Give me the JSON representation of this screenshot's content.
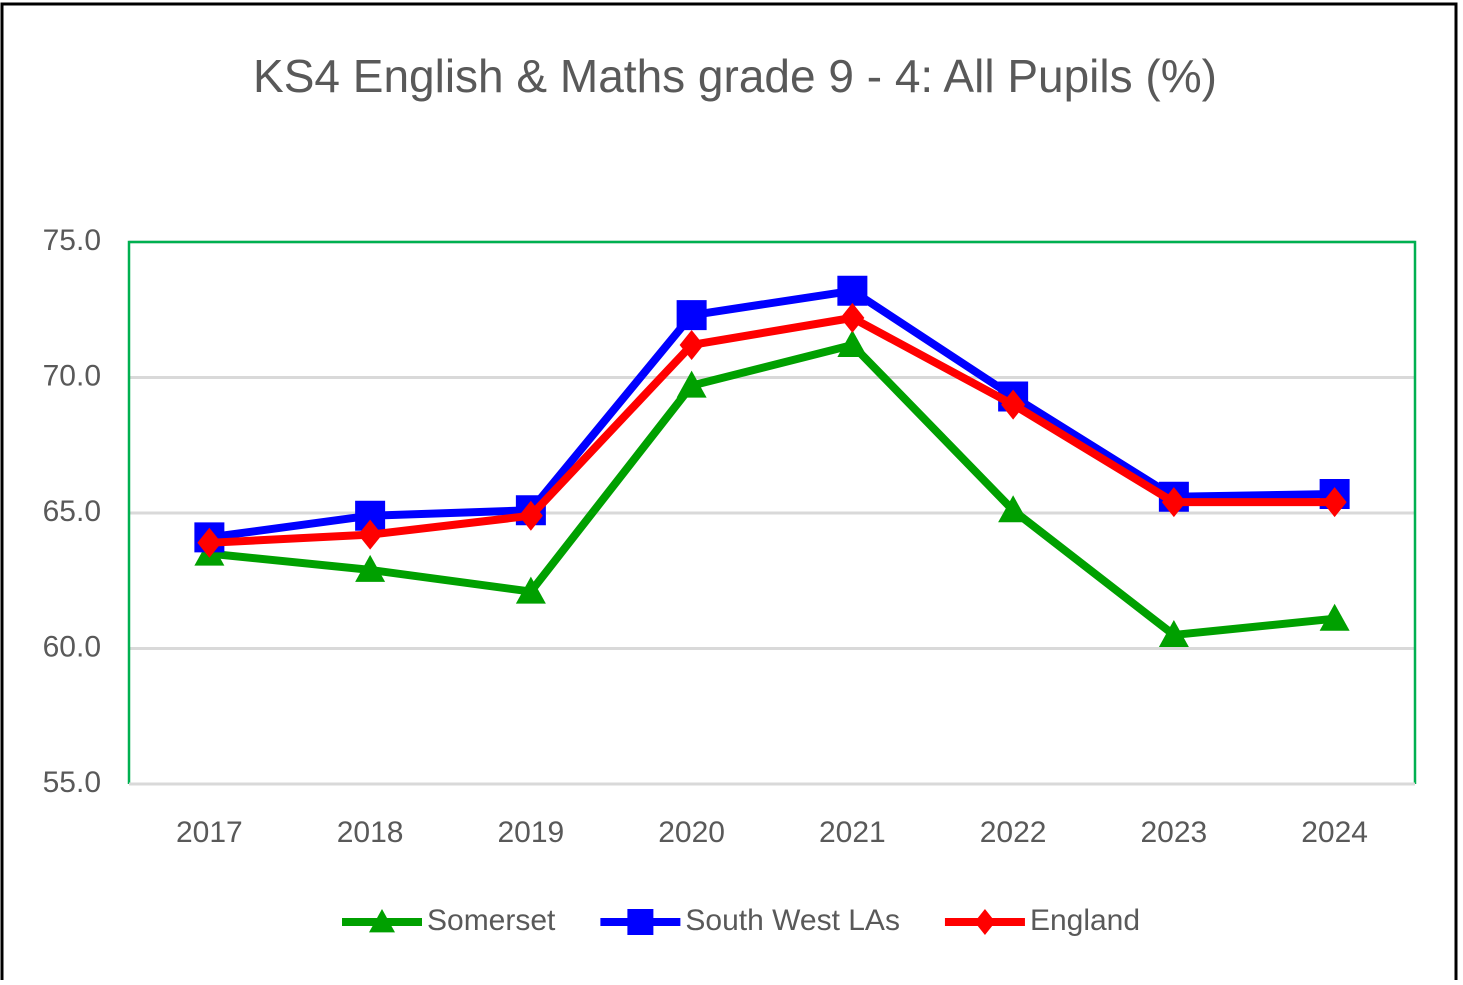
{
  "chart_data": {
    "type": "line",
    "title": "KS4 English & Maths grade 9 - 4: All Pupils (%)",
    "categories": [
      "2017",
      "2018",
      "2019",
      "2020",
      "2021",
      "2022",
      "2023",
      "2024"
    ],
    "series": [
      {
        "name": "Somerset",
        "color": "#00a000",
        "marker": "triangle",
        "values": [
          63.5,
          62.9,
          62.1,
          69.7,
          71.2,
          65.1,
          60.5,
          61.1
        ]
      },
      {
        "name": "South West LAs",
        "color": "#0000ff",
        "marker": "square",
        "values": [
          64.1,
          64.9,
          65.1,
          72.3,
          73.2,
          69.3,
          65.6,
          65.7
        ]
      },
      {
        "name": "England",
        "color": "#ff0000",
        "marker": "diamond",
        "values": [
          63.9,
          64.2,
          64.9,
          71.2,
          72.2,
          69.0,
          65.4,
          65.4
        ]
      }
    ],
    "ylim": [
      55,
      75
    ],
    "yticks": [
      {
        "value": 55,
        "label": "55.0"
      },
      {
        "value": 60,
        "label": "60.0"
      },
      {
        "value": 65,
        "label": "65.0"
      },
      {
        "value": 70,
        "label": "70.0"
      },
      {
        "value": 75,
        "label": "75.0"
      }
    ],
    "grid": true,
    "legend": "bottom"
  }
}
